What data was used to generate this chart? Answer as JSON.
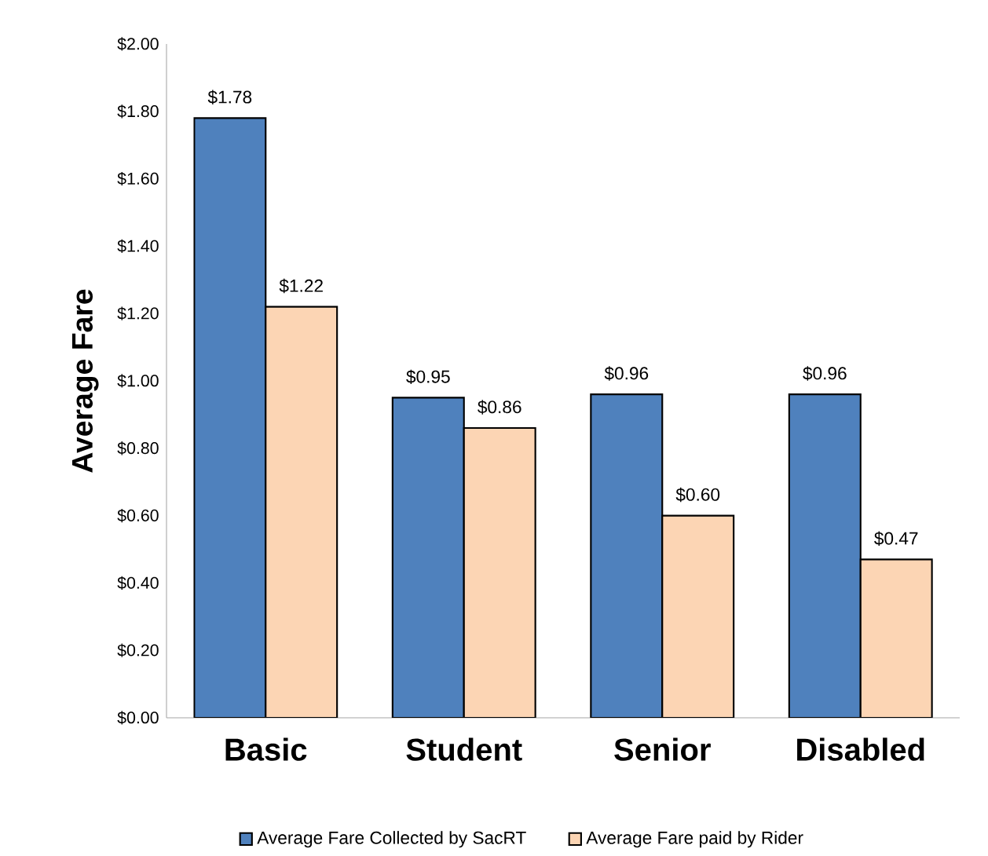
{
  "chart_data": {
    "type": "bar",
    "ylabel": "Average Fare",
    "categories": [
      "Basic",
      "Student",
      "Senior",
      "Disabled"
    ],
    "series": [
      {
        "name": "Average Fare Collected by SacRT",
        "color": "#4f81bd",
        "values": [
          1.78,
          0.95,
          0.96,
          0.96
        ],
        "value_labels": [
          "$1.78",
          "$0.95",
          "$0.96",
          "$0.96"
        ]
      },
      {
        "name": "Average Fare paid by Rider",
        "color": "#fcd5b4",
        "values": [
          1.22,
          0.86,
          0.6,
          0.47
        ],
        "value_labels": [
          "$1.22",
          "$0.86",
          "$0.60",
          "$0.47"
        ]
      }
    ],
    "ylim": [
      0,
      2
    ],
    "yticks": [
      {
        "value": 0,
        "label": "$0.00"
      },
      {
        "value": 0.2,
        "label": "$0.20"
      },
      {
        "value": 0.4,
        "label": "$0.40"
      },
      {
        "value": 0.6,
        "label": "$0.60"
      },
      {
        "value": 0.8,
        "label": "$0.80"
      },
      {
        "value": 1.0,
        "label": "$1.00"
      },
      {
        "value": 1.2,
        "label": "$1.20"
      },
      {
        "value": 1.4,
        "label": "$1.40"
      },
      {
        "value": 1.6,
        "label": "$1.60"
      },
      {
        "value": 1.8,
        "label": "$1.80"
      },
      {
        "value": 2.0,
        "label": "$2.00"
      }
    ],
    "grid": false,
    "legend": "bottom"
  }
}
